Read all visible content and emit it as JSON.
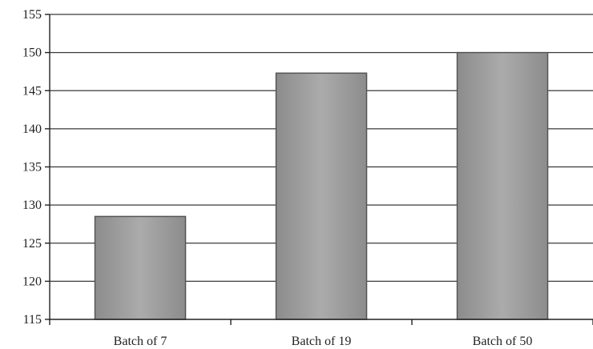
{
  "chart_data": {
    "type": "bar",
    "title": "",
    "xlabel": "",
    "ylabel": "",
    "categories": [
      "Batch of 7",
      "Batch of 19",
      "Batch of 50"
    ],
    "values": [
      128.5,
      147.3,
      150.0
    ],
    "ylim": [
      115,
      155
    ],
    "yticks": [
      "115",
      "120",
      "125",
      "130",
      "135",
      "140",
      "145",
      "150",
      "155"
    ],
    "grid": true,
    "legend": "none",
    "colors": {
      "bar_fill": "#9a9a9a",
      "bar_stroke": "#555555",
      "grid": "#3a3a3a"
    }
  }
}
